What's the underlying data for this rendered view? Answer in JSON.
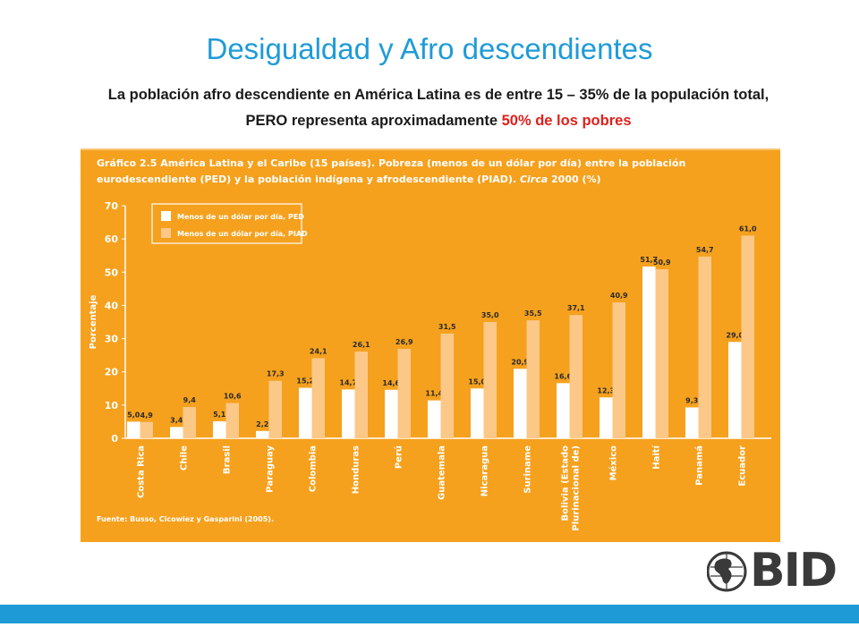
{
  "slide": {
    "title": "Desigualdad  y Afro descendientes",
    "subtitle_part1": "La población afro descendiente en América Latina es de entre 15 – 35% de la populación total, PERO representa aproximadamente ",
    "subtitle_highlight": "50% de los pobres",
    "highlight_color": "#e0201b",
    "title_color": "#1f9bd7",
    "logo_text": "BID"
  },
  "chart_data": {
    "type": "bar",
    "title_line1": "Gráfico 2.5 América Latina y el Caribe (15 países). Pobreza (menos de un dólar por día) entre la población",
    "title_line2_a": "eurodescendiente (PED) y la población indígena y afrodescendiente (PIAD). ",
    "title_line2_b": "Circa",
    "title_line2_c": " 2000 (%)",
    "ylabel": "Porcentaje",
    "ylim": [
      0,
      70
    ],
    "yticks": [
      "0",
      "10",
      "20",
      "30",
      "40",
      "50",
      "60",
      "70"
    ],
    "categories": [
      "Costa Rica",
      "Chile",
      "Brasil",
      "Paraguay",
      "Colombia",
      "Honduras",
      "Perú",
      "Guatemala",
      "Nicaragua",
      "Suriname",
      "Bolivia (Estado Plurinacional de)",
      "México",
      "Haití",
      "Panamá",
      "Ecuador"
    ],
    "series": [
      {
        "name": "Menos de un dólar por día, PED",
        "color": "#ffffff",
        "values": [
          5.0,
          3.4,
          5.1,
          2.2,
          15.2,
          14.7,
          14.6,
          11.4,
          15.0,
          20.9,
          16.6,
          12.3,
          51.7,
          9.3,
          29.0
        ],
        "labels": [
          "5,0",
          "3,4",
          "5,1",
          "2,2",
          "15,2",
          "14,7",
          "14,6",
          "11,4",
          "15,0",
          "20,9",
          "16,6",
          "12,3",
          "51,7",
          "9,3",
          "29,0"
        ]
      },
      {
        "name": "Menos de un dólar por día, PIAD",
        "color": "#fcc887",
        "values": [
          4.9,
          9.4,
          10.6,
          17.3,
          24.1,
          26.1,
          26.9,
          31.5,
          35.0,
          35.5,
          37.1,
          40.9,
          50.9,
          54.7,
          61.0
        ],
        "labels": [
          "4,9",
          "9,4",
          "10,6",
          "17,3",
          "24,1",
          "26,1",
          "26,9",
          "31,5",
          "35,0",
          "35,5",
          "37,1",
          "40,9",
          "50,9",
          "54,7",
          "61,0"
        ]
      }
    ],
    "legend_position": "top-left",
    "grid": false,
    "source": "Fuente: Busso, Cicowiez y Gasparini (2005)."
  }
}
